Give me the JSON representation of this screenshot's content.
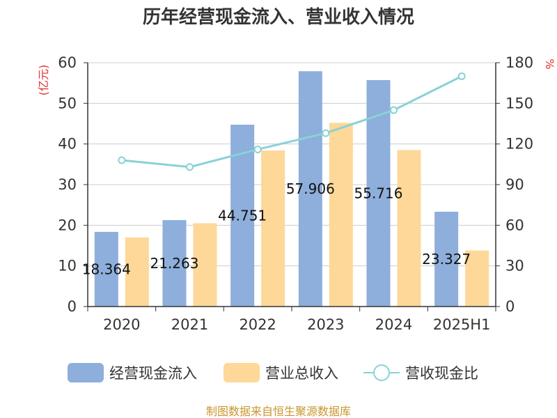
{
  "chart_data": {
    "type": "bar",
    "title": "历年经营现金流入、营业收入情况",
    "categories": [
      "2020",
      "2021",
      "2022",
      "2023",
      "2024",
      "2025H1"
    ],
    "series": [
      {
        "name": "经营现金流入",
        "type": "bar",
        "axis": "left",
        "color": "#8eaedb",
        "values": [
          18.364,
          21.263,
          44.751,
          57.906,
          55.716,
          23.327
        ],
        "labels": [
          "18.364",
          "21.263",
          "44.751",
          "57.906",
          "55.716",
          "23.327"
        ]
      },
      {
        "name": "营业总收入",
        "type": "bar",
        "axis": "left",
        "color": "#fdd898",
        "values": [
          17.0,
          20.5,
          38.4,
          45.2,
          38.5,
          13.8
        ]
      },
      {
        "name": "营收现金比",
        "type": "line",
        "axis": "right",
        "color": "#88d2d6",
        "values": [
          108,
          103,
          116,
          128,
          145,
          170
        ]
      }
    ],
    "y_left": {
      "unit": "(亿元)",
      "min": 0,
      "max": 60,
      "ticks": [
        0,
        10,
        20,
        30,
        40,
        50,
        60
      ]
    },
    "y_right": {
      "unit": "%",
      "min": 0,
      "max": 180,
      "ticks": [
        0,
        30,
        60,
        90,
        120,
        150,
        180
      ]
    },
    "grid": true,
    "legend_position": "bottom"
  },
  "source": "制图数据来自恒生聚源数据库"
}
